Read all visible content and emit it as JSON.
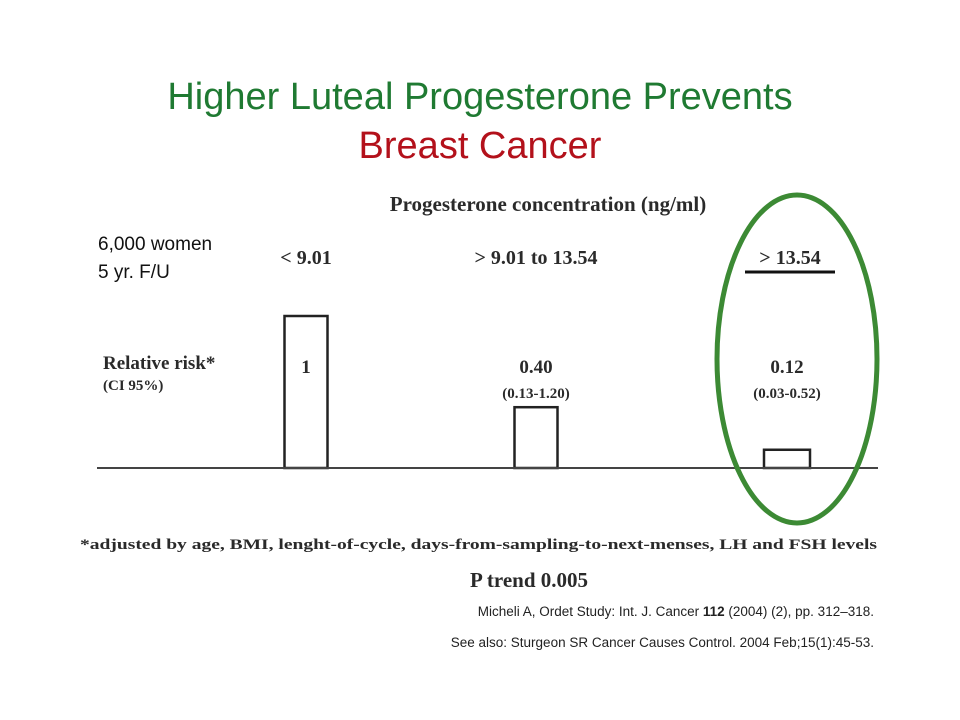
{
  "slide": {
    "title_line1": "Higher Luteal Progesterone Prevents",
    "title_line2": "Breast Cancer",
    "side_note_line1": "6,000 women",
    "side_note_line2": "5 yr. F/U",
    "citation1_prefix": "Micheli A, Ordet Study: Int. J. Cancer ",
    "citation1_bold": "112",
    "citation1_suffix": " (2004) (2), pp. 312–318.",
    "citation2": "See also: Sturgeon SR Cancer Causes Control. 2004 Feb;15(1):45-53.",
    "highlight_color": "#3c8a34"
  },
  "chart_data": {
    "type": "bar",
    "title": "Progesterone concentration (ng/ml)",
    "ylabel": "Relative risk*",
    "ylabel_sub": "(CI 95%)",
    "categories": [
      "< 9.01",
      "> 9.01 to 13.54",
      "> 13.54"
    ],
    "values": [
      1,
      0.4,
      0.12
    ],
    "value_labels": [
      "1",
      "0.40",
      "0.12"
    ],
    "ci_labels": [
      "",
      "(0.13-1.20)",
      "(0.03-0.52)"
    ],
    "ylim": [
      0,
      1
    ],
    "grid": false,
    "footnote": "*adjusted by age, BMI, lenght-of-cycle, days-from-sampling-to-next-menses, LH and FSH levels",
    "p_trend": "P trend 0.005",
    "highlighted_category": "> 13.54"
  }
}
